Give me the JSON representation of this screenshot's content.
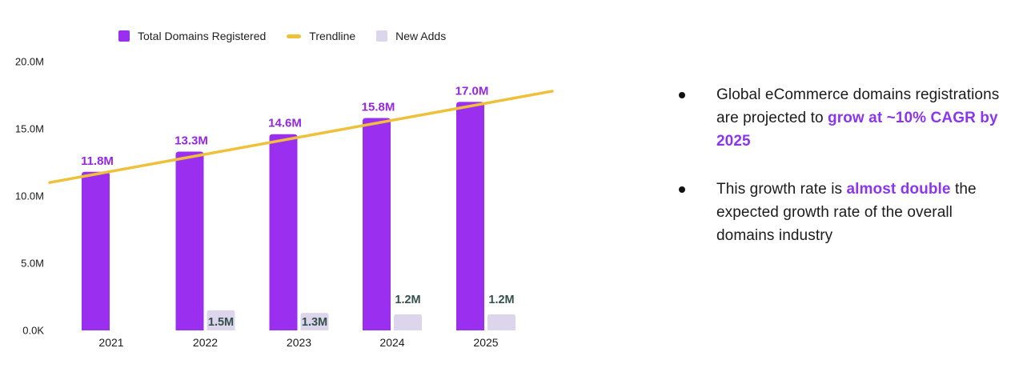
{
  "chart_data": {
    "type": "bar",
    "title": "",
    "categories": [
      "2021",
      "2022",
      "2023",
      "2024",
      "2025"
    ],
    "series": [
      {
        "name": "Total Domains Registered",
        "color": "#9A2FF0",
        "label_color": "#9428E0",
        "values": [
          11.8,
          13.3,
          14.6,
          15.8,
          17.0
        ],
        "labels": [
          "11.8M",
          "13.3M",
          "14.6M",
          "15.8M",
          "17.0M"
        ]
      },
      {
        "name": "New Adds",
        "color": "#DDD5EC",
        "label_color": "#33514B",
        "values": [
          null,
          1.5,
          1.3,
          1.2,
          1.2
        ],
        "labels": [
          null,
          "1.5M",
          "1.3M",
          "1.2M",
          "1.2M"
        ],
        "label_positions": [
          null,
          "inside",
          "inside",
          "above",
          "above"
        ]
      }
    ],
    "trendline": {
      "name": "Trendline",
      "color": "#EFC13B",
      "start_value": 11.0,
      "end_value": 17.8
    },
    "y_axis": {
      "unit": "millions",
      "max": 20,
      "ticks": [
        {
          "value": 0,
          "label": "0.0K"
        },
        {
          "value": 5,
          "label": "5.0M"
        },
        {
          "value": 10,
          "label": "10.0M"
        },
        {
          "value": 15,
          "label": "15.0M"
        },
        {
          "value": 20,
          "label": "20.0M"
        }
      ]
    },
    "axis_text_color": "#1A1A1A",
    "legend_position": "top",
    "grid": false
  },
  "notes": {
    "text_color": "#1B1B1B",
    "highlight_color": "#8B36EE",
    "bullets": [
      {
        "pre": "Global eCommerce domains registrations are projected to ",
        "highlight": "grow at ~10% CAGR by 2025",
        "post": ""
      },
      {
        "pre": "This growth rate is ",
        "highlight": "almost double",
        "post": " the expected growth rate of the overall domains industry"
      }
    ]
  }
}
